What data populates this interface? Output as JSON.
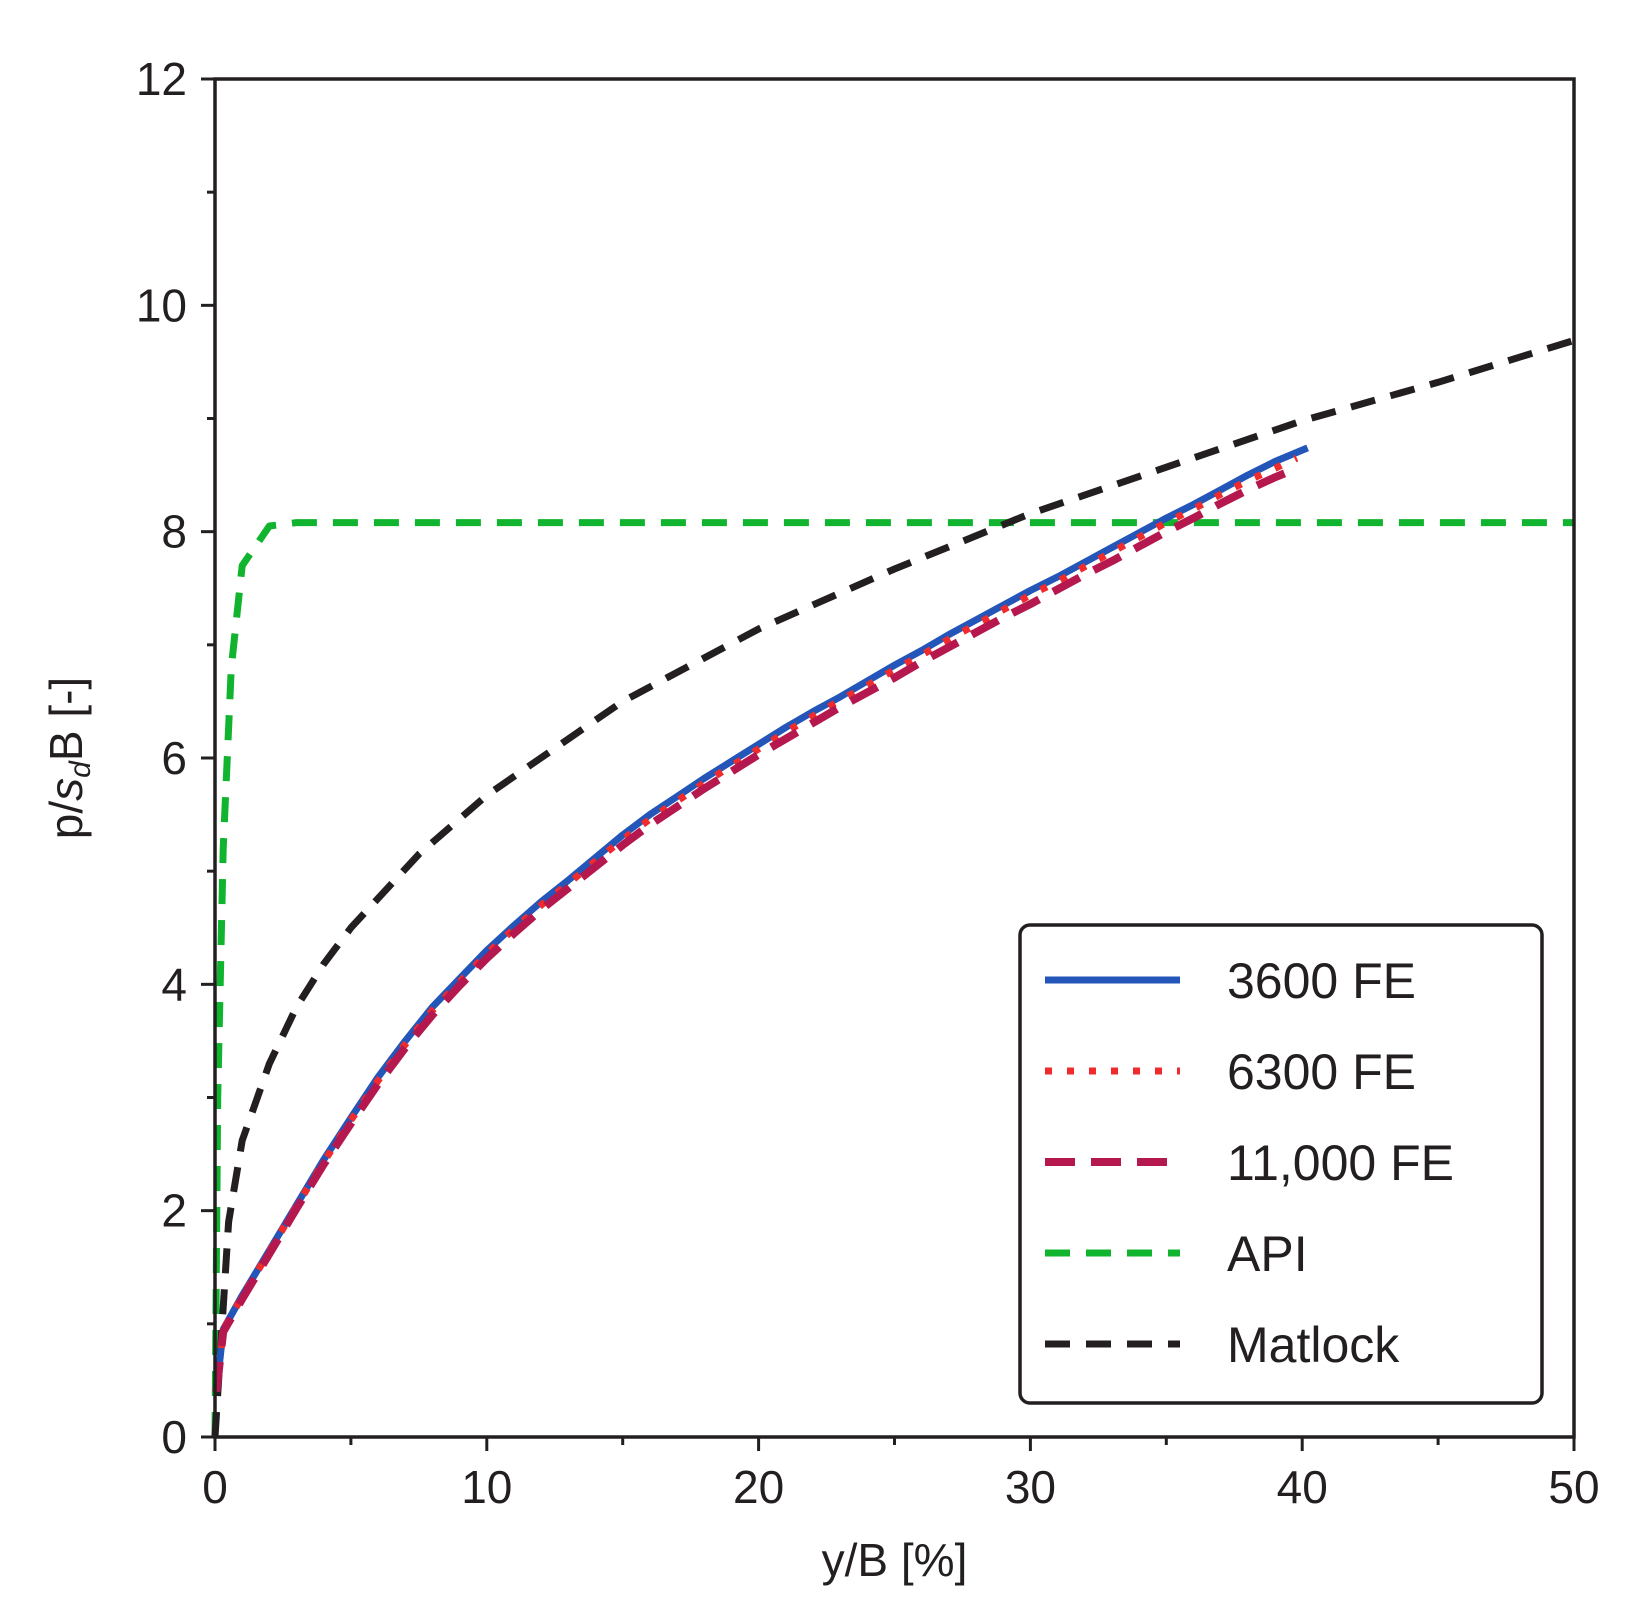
{
  "chart_data": {
    "type": "line",
    "title": "",
    "xlabel": "y/B [%]",
    "ylabel_parts": {
      "pre": "p/",
      "s": "s",
      "sub": "d",
      "post": "B [-]"
    },
    "xlim": [
      0,
      50
    ],
    "ylim": [
      0,
      12
    ],
    "xticks": [
      0,
      10,
      20,
      30,
      40,
      50
    ],
    "yticks": [
      0,
      2,
      4,
      6,
      8,
      10,
      12
    ],
    "grid": false,
    "legend_position": "bottom-right",
    "series": [
      {
        "name": "3600 FE",
        "color": "#2356b8",
        "style": "solid",
        "x": [
          0.05,
          0.3,
          1,
          2,
          3,
          4,
          5,
          6,
          7,
          8,
          9,
          10,
          11,
          12,
          13,
          14,
          15,
          16,
          17,
          18,
          19,
          20,
          21,
          22,
          23,
          24,
          25,
          26,
          27,
          28,
          29,
          30,
          31,
          32,
          33,
          34,
          35,
          36,
          37,
          38,
          39,
          40.2
        ],
        "y": [
          0.4,
          0.95,
          1.25,
          1.65,
          2.05,
          2.45,
          2.82,
          3.18,
          3.5,
          3.8,
          4.05,
          4.3,
          4.52,
          4.73,
          4.92,
          5.12,
          5.32,
          5.5,
          5.66,
          5.82,
          5.97,
          6.12,
          6.27,
          6.41,
          6.54,
          6.68,
          6.82,
          6.95,
          7.09,
          7.22,
          7.35,
          7.48,
          7.6,
          7.73,
          7.86,
          7.99,
          8.12,
          8.24,
          8.37,
          8.5,
          8.62,
          8.74
        ]
      },
      {
        "name": "6300 FE",
        "color": "#ef2b2d",
        "style": "dotted",
        "x": [
          0.05,
          0.3,
          1,
          2,
          3,
          4,
          5,
          6,
          7,
          8,
          9,
          10,
          11,
          12,
          13,
          14,
          15,
          16,
          17,
          18,
          19,
          20,
          21,
          22,
          23,
          24,
          25,
          26,
          27,
          28,
          29,
          30,
          31,
          32,
          33,
          34,
          35,
          36,
          37,
          38,
          39,
          39.8
        ],
        "y": [
          0.4,
          0.95,
          1.24,
          1.64,
          2.04,
          2.43,
          2.8,
          3.15,
          3.47,
          3.77,
          4.02,
          4.27,
          4.49,
          4.7,
          4.89,
          5.09,
          5.28,
          5.46,
          5.62,
          5.78,
          5.93,
          6.08,
          6.23,
          6.37,
          6.51,
          6.64,
          6.78,
          6.91,
          7.05,
          7.18,
          7.31,
          7.44,
          7.56,
          7.69,
          7.82,
          7.95,
          8.08,
          8.2,
          8.33,
          8.45,
          8.56,
          8.65
        ]
      },
      {
        "name": "11,000 FE",
        "color": "#b5174f",
        "style": "dashed",
        "x": [
          0.05,
          0.3,
          1,
          2,
          3,
          4,
          5,
          6,
          7,
          8,
          9,
          10,
          11,
          12,
          13,
          14,
          15,
          16,
          17,
          18,
          19,
          20,
          21,
          22,
          23,
          24,
          25,
          26,
          27,
          28,
          29,
          30,
          31,
          32,
          33,
          34,
          35,
          36,
          37,
          38,
          39,
          39.5
        ],
        "y": [
          0.4,
          0.93,
          1.22,
          1.62,
          2.02,
          2.41,
          2.77,
          3.12,
          3.44,
          3.73,
          3.99,
          4.23,
          4.45,
          4.66,
          4.85,
          5.04,
          5.23,
          5.41,
          5.57,
          5.73,
          5.88,
          6.03,
          6.17,
          6.31,
          6.45,
          6.58,
          6.71,
          6.85,
          6.98,
          7.11,
          7.24,
          7.36,
          7.49,
          7.62,
          7.74,
          7.87,
          8.0,
          8.12,
          8.25,
          8.37,
          8.48,
          8.53
        ]
      },
      {
        "name": "API",
        "color": "#10b42e",
        "style": "dashed",
        "x": [
          0,
          0.1,
          0.3,
          0.6,
          1.0,
          2.0,
          3.0,
          50
        ],
        "y": [
          0,
          3.0,
          5.2,
          6.8,
          7.7,
          8.05,
          8.08,
          8.08
        ]
      },
      {
        "name": "Matlock",
        "color": "#231f20",
        "style": "dashed",
        "x": [
          0,
          0.5,
          1,
          2,
          3,
          4,
          5,
          7.5,
          10,
          15,
          20,
          25,
          30,
          35,
          40,
          45,
          50
        ],
        "y": [
          0,
          1.9,
          2.62,
          3.3,
          3.8,
          4.18,
          4.5,
          5.15,
          5.67,
          6.5,
          7.14,
          7.67,
          8.16,
          8.57,
          8.98,
          9.32,
          9.69
        ]
      }
    ]
  }
}
